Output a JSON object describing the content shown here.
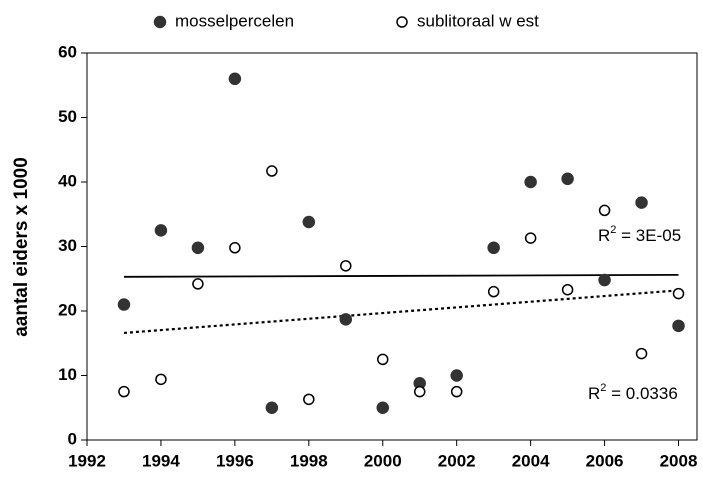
{
  "chart_data": {
    "type": "scatter",
    "y_label": "aantal eiders x 1000",
    "x": [
      1993,
      1994,
      1995,
      1996,
      1997,
      1998,
      1999,
      2000,
      2001,
      2002,
      2003,
      2004,
      2005,
      2006,
      2007,
      2008
    ],
    "series": [
      {
        "name": "mosselpercelen",
        "color": "#333333",
        "marker": "filled",
        "values": [
          21,
          32.5,
          29.8,
          56,
          5,
          33.8,
          18.7,
          5,
          8.8,
          10,
          29.8,
          40,
          40.5,
          24.8,
          36.8,
          17.7
        ]
      },
      {
        "name": "sublitoraal w est",
        "color": "#000000",
        "marker": "open",
        "values": [
          7.5,
          9.4,
          24.2,
          29.8,
          41.7,
          6.3,
          27,
          12.5,
          7.5,
          7.5,
          23,
          31.3,
          23.3,
          35.6,
          13.4,
          22.7
        ]
      }
    ],
    "trendlines": [
      {
        "x": [
          1993,
          2008
        ],
        "values": [
          25.3,
          25.6
        ],
        "style": "solid",
        "r2": [
          "R",
          "2",
          " = 3E-05"
        ]
      },
      {
        "x": [
          1993,
          2008
        ],
        "values": [
          16.6,
          23.2
        ],
        "style": "dotted",
        "r2": [
          "R",
          "2",
          " = 0.0336"
        ]
      }
    ],
    "xlim": [
      1992,
      2008.5
    ],
    "xticks": [
      1992,
      1994,
      1996,
      1998,
      2000,
      2002,
      2004,
      2006,
      2008
    ],
    "ylim": [
      0,
      60
    ],
    "yticks": [
      0,
      10,
      20,
      30,
      40,
      50,
      60
    ]
  }
}
